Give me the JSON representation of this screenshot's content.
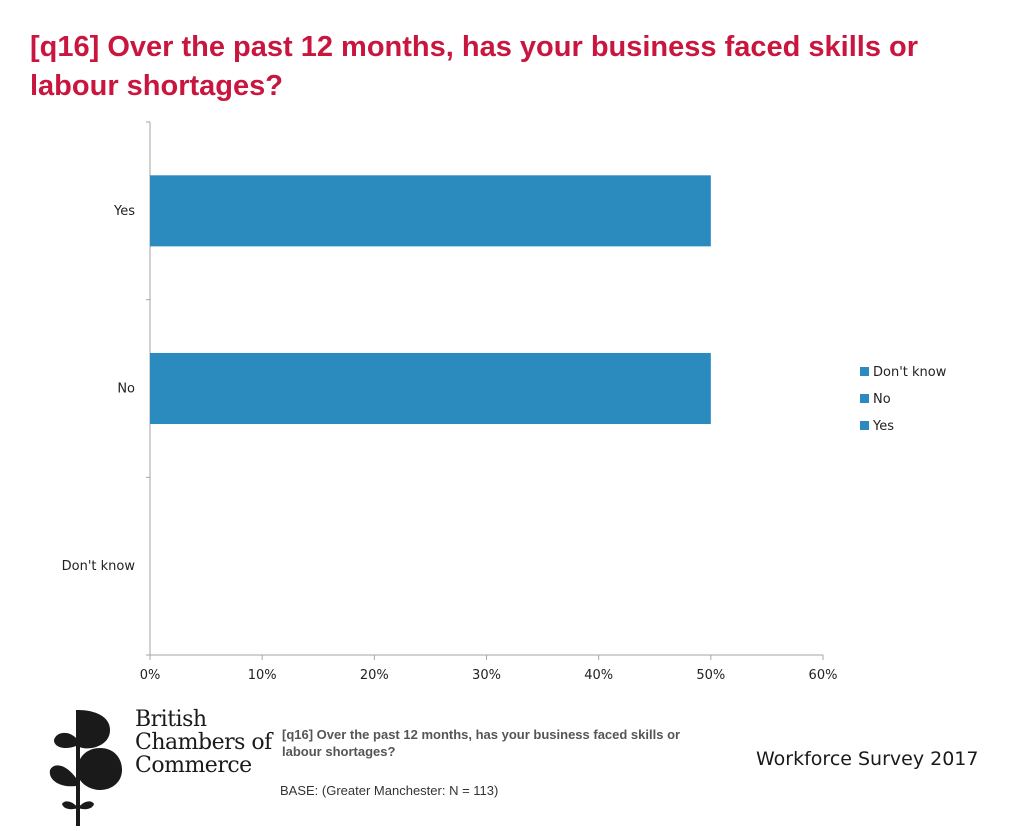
{
  "title": "[q16] Over the past 12 months, has your business faced skills or labour shortages?",
  "chart_data": {
    "type": "bar",
    "orientation": "horizontal",
    "categories": [
      "Yes",
      "No",
      "Don't know"
    ],
    "values": [
      50,
      50,
      0
    ],
    "unit": "%",
    "xlim": [
      0,
      60
    ],
    "xticks": [
      0,
      10,
      20,
      30,
      40,
      50,
      60
    ],
    "xtick_labels": [
      "0%",
      "10%",
      "20%",
      "30%",
      "40%",
      "50%",
      "60%"
    ],
    "legend": [
      "Don't know",
      "No",
      "Yes"
    ],
    "legend_position": "right",
    "bar_color": "#2b8bbf",
    "grid": false
  },
  "footer": {
    "question": "[q16] Over the past 12 months, has your business faced skills or labour shortages?",
    "base": "BASE: (Greater Manchester: N = 113)",
    "survey": "Workforce Survey 2017"
  },
  "logo": {
    "line1": "British",
    "line2": "Chambers of",
    "line3": "Commerce"
  }
}
